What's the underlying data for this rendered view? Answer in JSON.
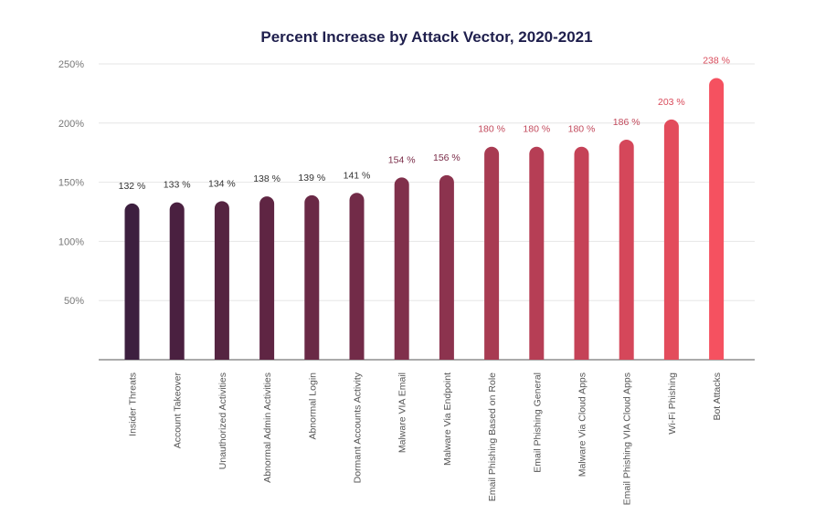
{
  "chart_data": {
    "type": "bar",
    "title": "Percent Increase by Attack Vector, 2020-2021",
    "xlabel": "",
    "ylabel": "",
    "ylim": [
      0,
      250
    ],
    "yticks": [
      50,
      100,
      150,
      200,
      250
    ],
    "ytick_labels": [
      "50%",
      "100%",
      "150%",
      "200%",
      "250%"
    ],
    "grid": true,
    "categories": [
      "Insider Threats",
      "Account Takeover",
      "Unauthorized Activities",
      "Abnormal Admin Activities",
      "Abnormal Login",
      "Dormant Accounts Activity",
      "Malware VIA Email",
      "Malware Via Endpoint",
      "Email Phishing Based on Role",
      "Email Phishing General",
      "Malware Via Cloud Apps",
      "Email Phishing VIA Cloud Apps",
      "Wi-Fi Phishing",
      "Bot Attacks"
    ],
    "values": [
      132,
      133,
      134,
      138,
      139,
      141,
      154,
      156,
      180,
      180,
      180,
      186,
      203,
      238
    ],
    "data_labels": [
      "132 %",
      "133 %",
      "134 %",
      "138 %",
      "139 %",
      "141 %",
      "154 %",
      "156 %",
      "180 %",
      "180 %",
      "180 %",
      "186 %",
      "203 %",
      "238 %"
    ],
    "bar_colors": [
      "#3d1f3f",
      "#4a2040",
      "#552441",
      "#5f2543",
      "#6a2946",
      "#722b48",
      "#80304b",
      "#8c334e",
      "#a83b52",
      "#b63e55",
      "#c54257",
      "#d5475a",
      "#e34c5c",
      "#f55160"
    ],
    "label_colors": [
      "#333333",
      "#333333",
      "#333333",
      "#333333",
      "#333333",
      "#333333",
      "#7a2c48",
      "#7a2c48",
      "#c24a5c",
      "#c24a5c",
      "#c24a5c",
      "#c24a5c",
      "#d94a5a",
      "#d94a5a"
    ]
  }
}
